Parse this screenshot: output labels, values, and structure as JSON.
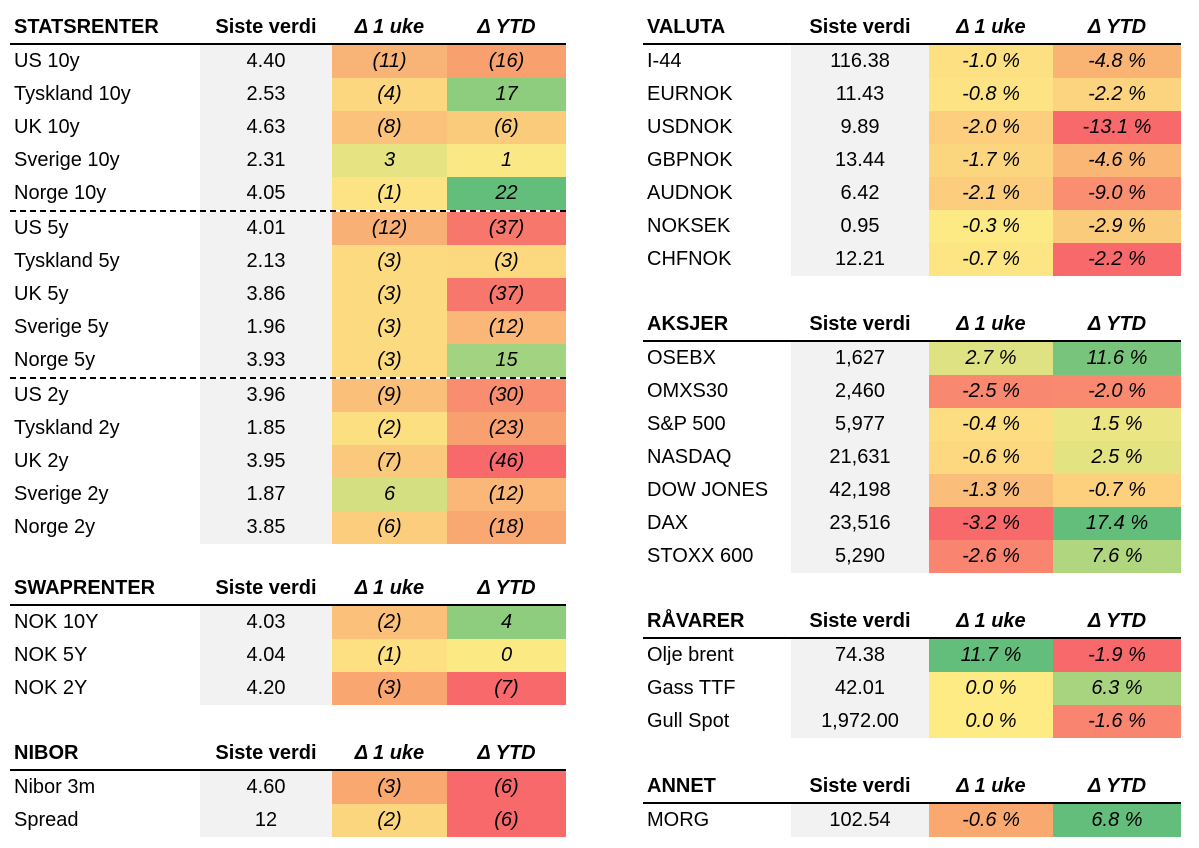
{
  "headers": {
    "siste_verdi": "Siste verdi",
    "d1uke": "Δ 1 uke",
    "dytd": "Δ YTD"
  },
  "statsrenter": {
    "title": "STATSRENTER",
    "rows": [
      {
        "name": "US 10y",
        "value": "4.40",
        "d1": "(11)",
        "ytd": "(16)",
        "c1": "#f8b476",
        "c2": "#f8a16e",
        "sep": false
      },
      {
        "name": "Tyskland 10y",
        "value": "2.53",
        "d1": "(4)",
        "ytd": "17",
        "c1": "#fcd77f",
        "c2": "#8ecd7d",
        "sep": false
      },
      {
        "name": "UK 10y",
        "value": "4.63",
        "d1": "(8)",
        "ytd": "(6)",
        "c1": "#fac27a",
        "c2": "#fbcb7c",
        "sep": false
      },
      {
        "name": "Sverige 10y",
        "value": "2.31",
        "d1": "3",
        "ytd": "1",
        "c1": "#e5e382",
        "c2": "#f9e883",
        "sep": false
      },
      {
        "name": "Norge 10y",
        "value": "4.05",
        "d1": "(1)",
        "ytd": "22",
        "c1": "#fde383",
        "c2": "#63be7b",
        "sep": false
      },
      {
        "name": "US 5y",
        "value": "4.01",
        "d1": "(12)",
        "ytd": "(37)",
        "c1": "#f8b074",
        "c2": "#f8776c",
        "sep": true
      },
      {
        "name": "Tyskland 5y",
        "value": "2.13",
        "d1": "(3)",
        "ytd": "(3)",
        "c1": "#fcdb80",
        "c2": "#fcd97f",
        "sep": false
      },
      {
        "name": "UK 5y",
        "value": "3.86",
        "d1": "(3)",
        "ytd": "(37)",
        "c1": "#fcdb80",
        "c2": "#f8776c",
        "sep": false
      },
      {
        "name": "Sverige 5y",
        "value": "1.96",
        "d1": "(3)",
        "ytd": "(12)",
        "c1": "#fcdb80",
        "c2": "#fab777",
        "sep": false
      },
      {
        "name": "Norge 5y",
        "value": "3.93",
        "d1": "(3)",
        "ytd": "15",
        "c1": "#fcdb80",
        "c2": "#a2d380",
        "sep": false
      },
      {
        "name": "US 2y",
        "value": "3.96",
        "d1": "(9)",
        "ytd": "(30)",
        "c1": "#fabf79",
        "c2": "#f98d70",
        "sep": true
      },
      {
        "name": "Tyskland 2y",
        "value": "1.85",
        "d1": "(2)",
        "ytd": "(23)",
        "c1": "#fcdf81",
        "c2": "#f9a070",
        "sep": false
      },
      {
        "name": "UK 2y",
        "value": "3.95",
        "d1": "(7)",
        "ytd": "(46)",
        "c1": "#fbc97b",
        "c2": "#f8696b",
        "sep": false
      },
      {
        "name": "Sverige 2y",
        "value": "1.87",
        "d1": "6",
        "ytd": "(12)",
        "c1": "#d4df81",
        "c2": "#fab777",
        "sep": false
      },
      {
        "name": "Norge 2y",
        "value": "3.85",
        "d1": "(6)",
        "ytd": "(18)",
        "c1": "#fbcd7c",
        "c2": "#f9a872",
        "sep": false
      }
    ]
  },
  "swaprenter": {
    "title": "SWAPRENTER",
    "rows": [
      {
        "name": "NOK 10Y",
        "value": "4.03",
        "d1": "(2)",
        "ytd": "4",
        "c1": "#fbc07a",
        "c2": "#8fcd7e",
        "sep": false
      },
      {
        "name": "NOK 5Y",
        "value": "4.04",
        "d1": "(1)",
        "ytd": "0",
        "c1": "#fde082",
        "c2": "#fbe984",
        "sep": false
      },
      {
        "name": "NOK 2Y",
        "value": "4.20",
        "d1": "(3)",
        "ytd": "(7)",
        "c1": "#f9a670",
        "c2": "#f8696b",
        "sep": false
      }
    ]
  },
  "nibor": {
    "title": "NIBOR",
    "rows": [
      {
        "name": "Nibor 3m",
        "value": "4.60",
        "d1": "(3)",
        "ytd": "(6)",
        "c1": "#f9a870",
        "c2": "#f8696b",
        "sep": false
      },
      {
        "name": "Spread",
        "value": "12",
        "d1": "(2)",
        "ytd": "(6)",
        "c1": "#fcd57f",
        "c2": "#f8696b",
        "sep": false
      }
    ]
  },
  "valuta": {
    "title": "VALUTA",
    "rows": [
      {
        "name": "I-44",
        "value": "116.38",
        "d1": "-1.0 %",
        "ytd": "-4.8 %",
        "c1": "#fde082",
        "c2": "#f9b474",
        "sep": false
      },
      {
        "name": "EURNOK",
        "value": "11.43",
        "d1": "-0.8 %",
        "ytd": "-2.2 %",
        "c1": "#fde383",
        "c2": "#fcd37e",
        "sep": false
      },
      {
        "name": "USDNOK",
        "value": "9.89",
        "d1": "-2.0 %",
        "ytd": "-13.1 %",
        "c1": "#fcce7d",
        "c2": "#f8696b",
        "sep": false
      },
      {
        "name": "GBPNOK",
        "value": "13.44",
        "d1": "-1.7 %",
        "ytd": "-4.6 %",
        "c1": "#fcd57f",
        "c2": "#f9b675",
        "sep": false
      },
      {
        "name": "AUDNOK",
        "value": "6.42",
        "d1": "-2.1 %",
        "ytd": "-9.0 %",
        "c1": "#fccd7c",
        "c2": "#f98e70",
        "sep": false
      },
      {
        "name": "NOKSEK",
        "value": "0.95",
        "d1": "-0.3 %",
        "ytd": "-2.9 %",
        "c1": "#feea84",
        "c2": "#fbcb7c",
        "sep": false
      },
      {
        "name": "CHFNOK",
        "value": "12.21",
        "d1": "-0.7 %",
        "ytd": "-2.2 %",
        "c1": "#fee583",
        "c2": "#f8696b",
        "sep": false
      }
    ]
  },
  "aksjer": {
    "title": "AKSJER",
    "rows": [
      {
        "name": "OSEBX",
        "value": "1,627",
        "d1": "2.7 %",
        "ytd": "11.6 %",
        "c1": "#dfe283",
        "c2": "#78c47c",
        "sep": false
      },
      {
        "name": "OMXS30",
        "value": "2,460",
        "d1": "-2.5 %",
        "ytd": "-2.0 %",
        "c1": "#f98870",
        "c2": "#f98a6f",
        "sep": false
      },
      {
        "name": "S&P 500",
        "value": "5,977",
        "d1": "-0.4 %",
        "ytd": "1.5 %",
        "c1": "#fddd81",
        "c2": "#ebe583",
        "sep": false
      },
      {
        "name": "NASDAQ",
        "value": "21,631",
        "d1": "-0.6 %",
        "ytd": "2.5 %",
        "c1": "#fdd880",
        "c2": "#e4e382",
        "sep": false
      },
      {
        "name": "DOW JONES",
        "value": "42,198",
        "d1": "-1.3 %",
        "ytd": "-0.7 %",
        "c1": "#fbbe7a",
        "c2": "#fdd07e",
        "sep": false
      },
      {
        "name": "DAX",
        "value": "23,516",
        "d1": "-3.2 %",
        "ytd": "17.4 %",
        "c1": "#f8696b",
        "c2": "#63be7b",
        "sep": false
      },
      {
        "name": "STOXX 600",
        "value": "5,290",
        "d1": "-2.6 %",
        "ytd": "7.6 %",
        "c1": "#f98470",
        "c2": "#b0d780",
        "sep": false
      }
    ]
  },
  "ravarer": {
    "title": "RÅVARER",
    "rows": [
      {
        "name": "Olje brent",
        "value": "74.38",
        "d1": "11.7 %",
        "ytd": "-1.9 %",
        "c1": "#63be7b",
        "c2": "#f8696b",
        "sep": false
      },
      {
        "name": "Gass TTF",
        "value": "42.01",
        "d1": "0.0 %",
        "ytd": "6.3 %",
        "c1": "#feeb84",
        "c2": "#a9d47f",
        "sep": false
      },
      {
        "name": "Gull Spot",
        "value": "1,972.00",
        "d1": "0.0 %",
        "ytd": "-1.6 %",
        "c1": "#feeb84",
        "c2": "#f98570",
        "sep": false
      }
    ]
  },
  "annet": {
    "title": "ANNET",
    "rows": [
      {
        "name": "MORG",
        "value": "102.54",
        "d1": "-0.6 %",
        "ytd": "6.8 %",
        "c1": "#f9a870",
        "c2": "#63be7b",
        "sep": false
      }
    ]
  }
}
